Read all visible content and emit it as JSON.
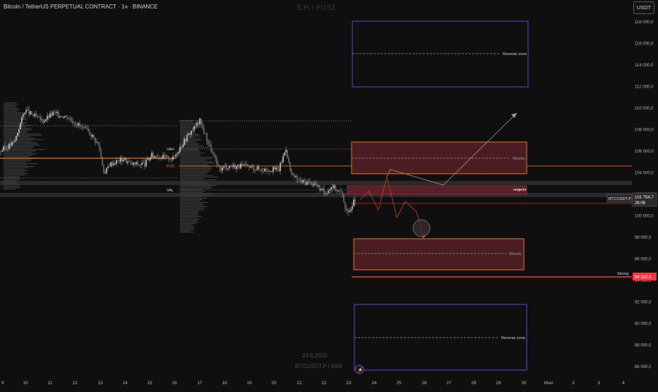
{
  "header": {
    "title": "Bitcoin / TetherUS PERPETUAL CONTRACT · 1ч · BINANCE",
    "author_watermark": "S.H.I.FUS2",
    "currency_button": "USDT"
  },
  "watermark": {
    "date": "23.6.2025",
    "symbol_interval": "BTCUSDT.P | 60M"
  },
  "price_axis": {
    "ticks": [
      "118 000,0",
      "116 000,0",
      "114 000,0",
      "112 000,0",
      "110 000,0",
      "108 000,0",
      "106 000,0",
      "104 000,0",
      "102 000,0",
      "100 000,0",
      "98 000,0",
      "96 000,0",
      "94 000,0",
      "92 000,0",
      "90 000,0",
      "88 000,0",
      "86 000,0"
    ],
    "tick_values": [
      118000,
      116000,
      114000,
      112000,
      110000,
      108000,
      106000,
      104000,
      102000,
      100000,
      98000,
      96000,
      94000,
      92000,
      90000,
      88000,
      86000
    ],
    "symbol_label": "BTCUSDT.P",
    "current_price": "101 754,7",
    "countdown": "26:06",
    "strong_label": "Strong",
    "strong_price": "94 332,2",
    "strong_value": 94332.2,
    "current_value": 101754.7
  },
  "time_axis": {
    "ticks": [
      "9",
      "10",
      "11",
      "12",
      "13",
      "14",
      "15",
      "16",
      "17",
      "18",
      "19",
      "20",
      "21",
      "22",
      "23",
      "24",
      "25",
      "26",
      "27",
      "28",
      "29",
      "30",
      "Июл",
      "2",
      "3",
      "4"
    ]
  },
  "zones": {
    "reverse_zone_label": "Reverse zone",
    "weekly_label": "Weekly",
    "nedelya_label": "неделя"
  },
  "volume_profile": {
    "vah": "VAH",
    "poc": "POC",
    "val": "VAL"
  },
  "colors": {
    "background": "#0f0f0f",
    "purple_zone": "#6f3fd6",
    "orange_zone": "#e8731c",
    "red_zone_fill": "#4a1d22",
    "strong_line": "#f23645",
    "poc_line": "#e8731c",
    "candle": "#c8c8c8"
  }
}
